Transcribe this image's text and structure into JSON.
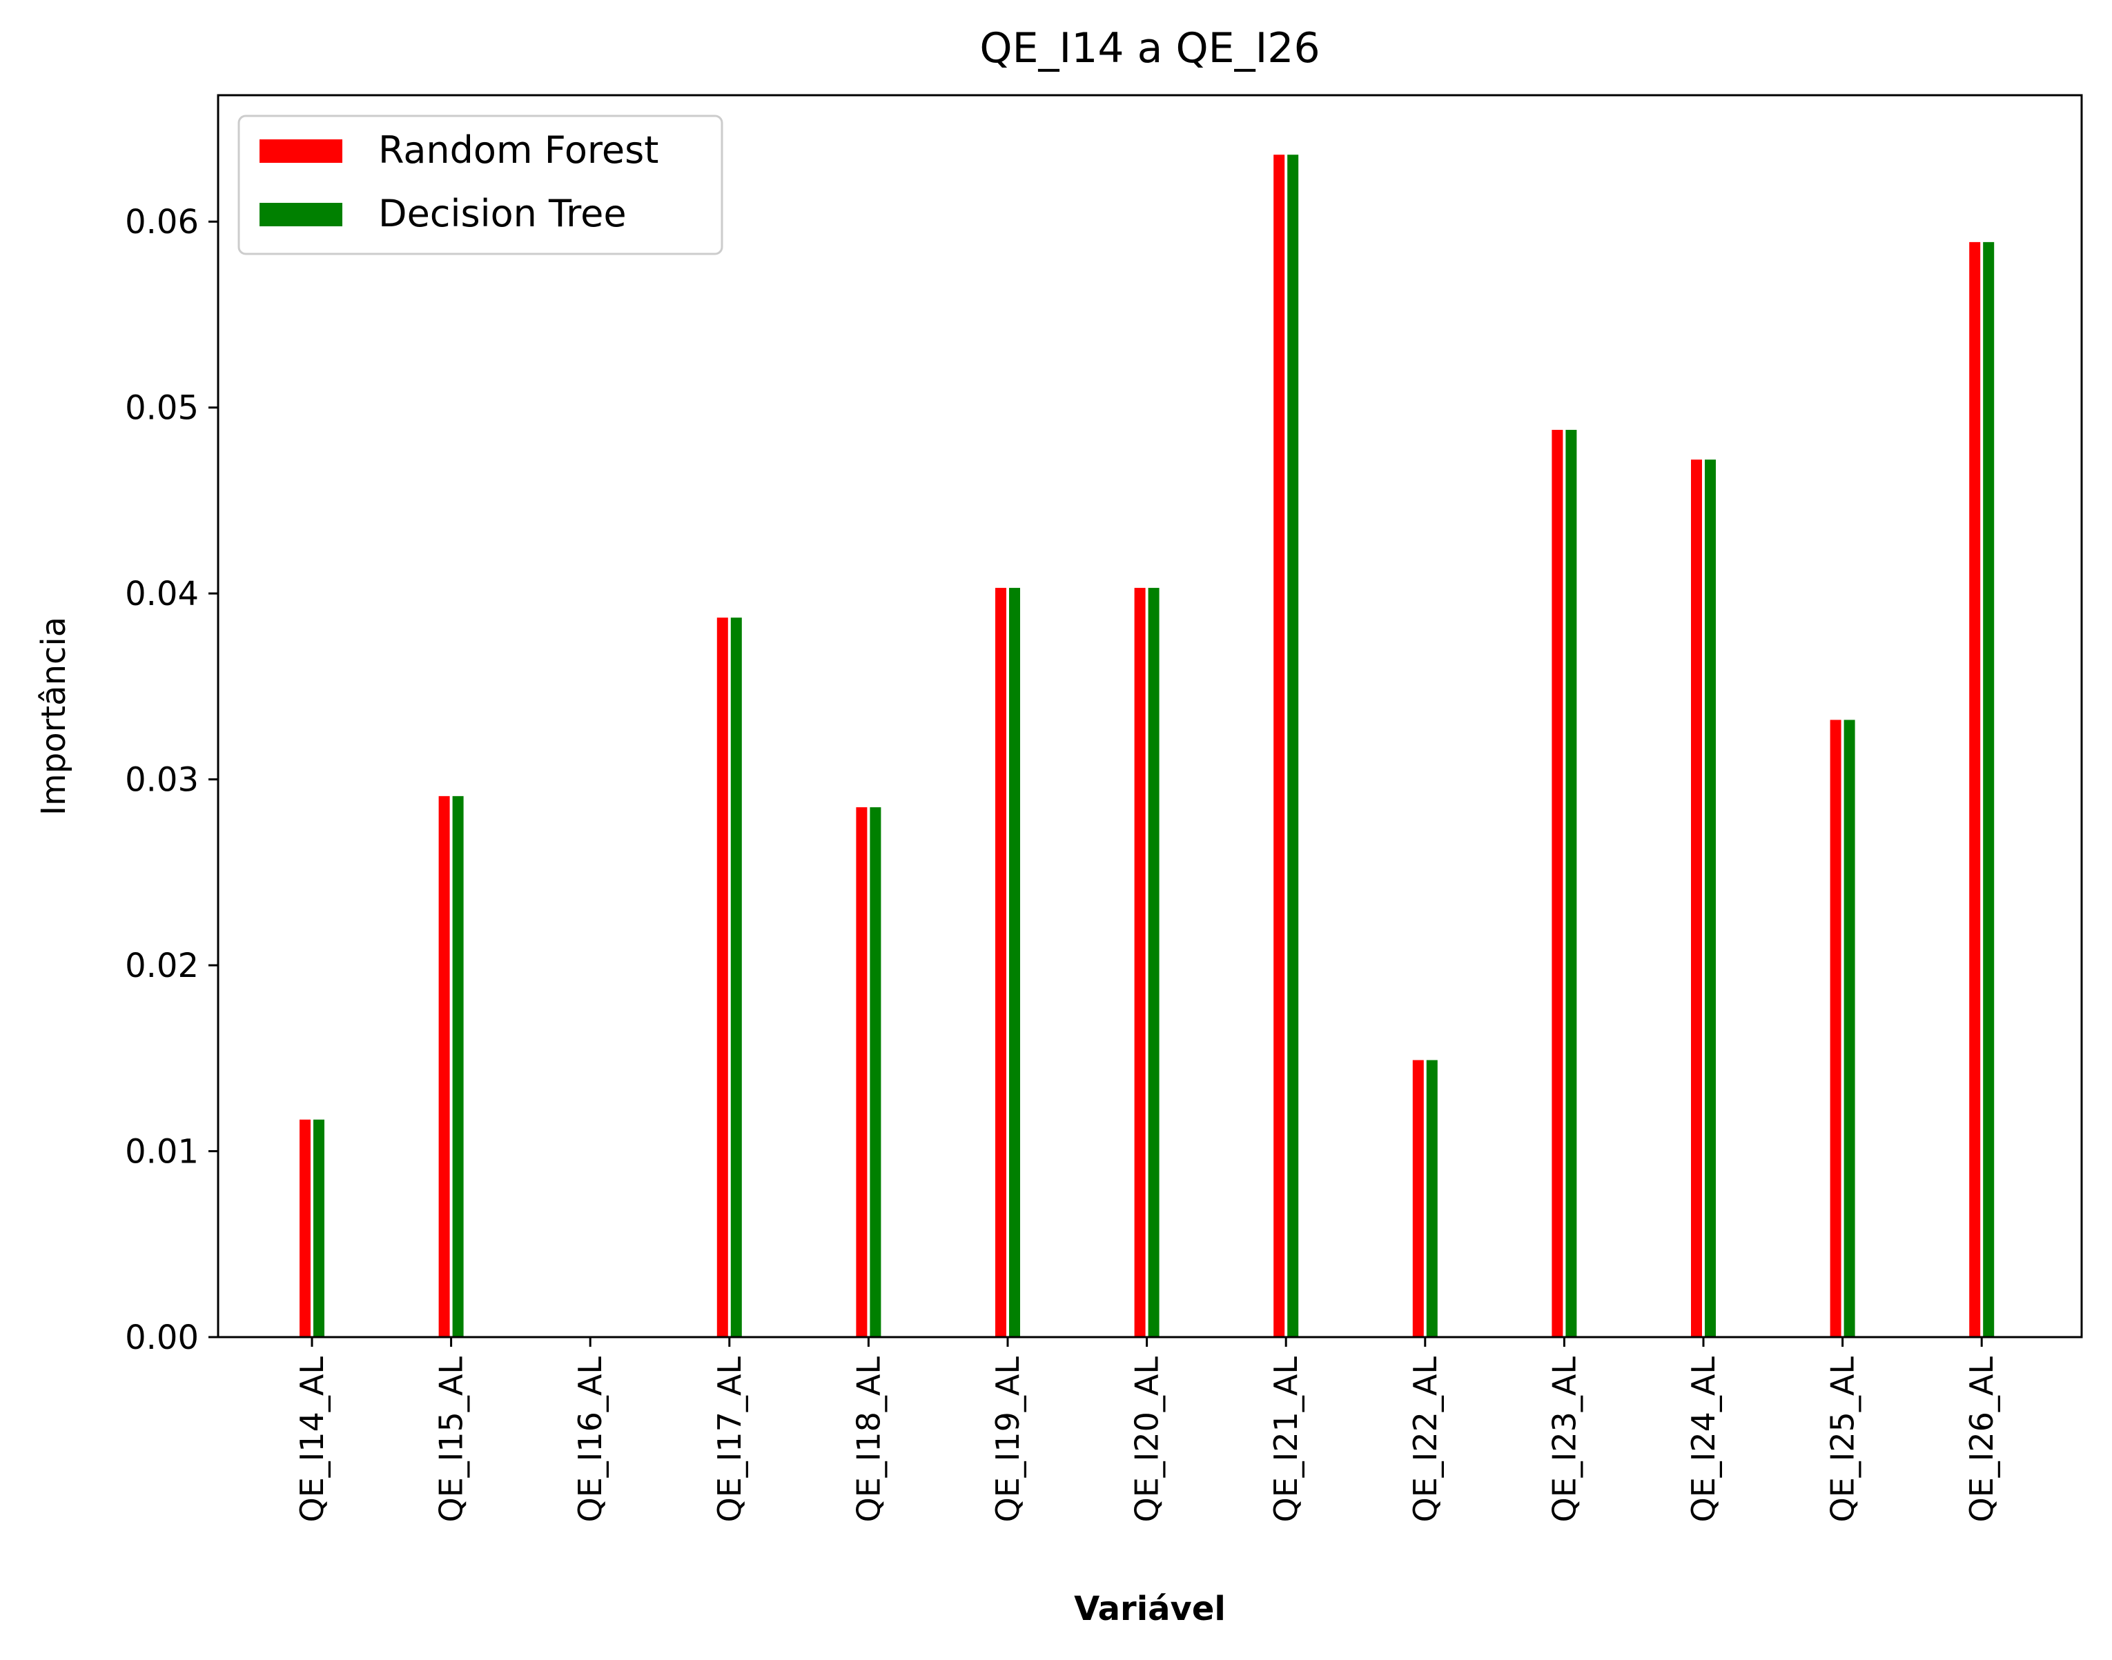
{
  "chart_data": {
    "type": "bar",
    "title": "QE_I14 a QE_I26",
    "xlabel": "Variável",
    "ylabel": "Importância",
    "categories": [
      "QE_I14_AL",
      "QE_I15_AL",
      "QE_I16_AL",
      "QE_I17_AL",
      "QE_I18_AL",
      "QE_I19_AL",
      "QE_I20_AL",
      "QE_I21_AL",
      "QE_I22_AL",
      "QE_I23_AL",
      "QE_I24_AL",
      "QE_I25_AL",
      "QE_I26_AL"
    ],
    "series": [
      {
        "name": "Random Forest",
        "color": "#ff0000",
        "values": [
          0.0117,
          0.0291,
          0.0,
          0.0387,
          0.0285,
          0.0403,
          0.0403,
          0.0636,
          0.0149,
          0.0488,
          0.0472,
          0.0332,
          0.0589
        ]
      },
      {
        "name": "Decision Tree",
        "color": "#008000",
        "values": [
          0.0117,
          0.0291,
          0.0,
          0.0387,
          0.0285,
          0.0403,
          0.0403,
          0.0636,
          0.0149,
          0.0488,
          0.0472,
          0.0332,
          0.0589
        ]
      }
    ],
    "ylim": [
      0,
      0.0668
    ],
    "yticks": [
      "0.00",
      "0.01",
      "0.02",
      "0.03",
      "0.04",
      "0.05",
      "0.06"
    ],
    "ytick_values": [
      0,
      0.01,
      0.02,
      0.03,
      0.04,
      0.05,
      0.06
    ],
    "legend_position": "top-left",
    "grid": false
  }
}
